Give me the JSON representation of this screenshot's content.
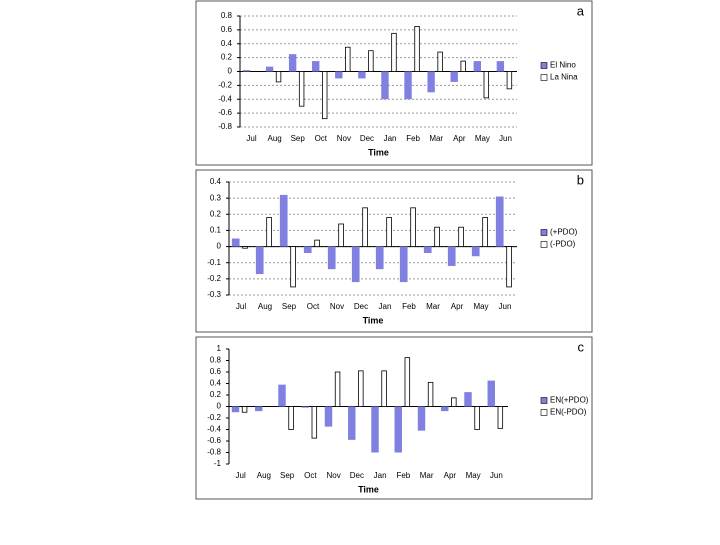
{
  "chart_data": [
    {
      "type": "bar",
      "label": "a",
      "x_label": "Time",
      "categories": [
        "Jul",
        "Aug",
        "Sep",
        "Oct",
        "Nov",
        "Dec",
        "Jan",
        "Feb",
        "Mar",
        "Apr",
        "May",
        "Jun"
      ],
      "series": [
        {
          "name": "El Nino",
          "color": "#8080e0",
          "values": [
            0.02,
            0.07,
            0.25,
            0.15,
            -0.1,
            -0.1,
            -0.4,
            -0.4,
            -0.3,
            -0.15,
            0.15,
            0.15
          ]
        },
        {
          "name": "La Nina",
          "color": "#ffffff",
          "values": [
            0,
            -0.15,
            -0.5,
            -0.68,
            0.35,
            0.3,
            0.55,
            0.65,
            0.28,
            0.15,
            -0.38,
            -0.25
          ]
        }
      ],
      "ylim": [
        -0.8,
        0.8
      ],
      "yticks": [
        0.8,
        0.6,
        0.4,
        0.2,
        0,
        -0.2,
        -0.4,
        -0.6,
        -0.8
      ],
      "grid": true
    },
    {
      "type": "bar",
      "label": "b",
      "x_label": "Time",
      "categories": [
        "Jul",
        "Aug",
        "Sep",
        "Oct",
        "Nov",
        "Dec",
        "Jan",
        "Feb",
        "Mar",
        "Apr",
        "May",
        "Jun"
      ],
      "series": [
        {
          "name": "(+PDO)",
          "color": "#8080e0",
          "values": [
            0.05,
            -0.17,
            0.32,
            -0.04,
            -0.14,
            -0.22,
            -0.14,
            -0.22,
            -0.04,
            -0.12,
            -0.06,
            0.31
          ]
        },
        {
          "name": "(-PDO)",
          "color": "#ffffff",
          "values": [
            -0.01,
            0.18,
            -0.25,
            0.04,
            0.14,
            0.24,
            0.18,
            0.24,
            0.12,
            0.12,
            0.18,
            -0.25
          ]
        }
      ],
      "ylim": [
        -0.3,
        0.4
      ],
      "yticks": [
        0.4,
        0.3,
        0.2,
        0.1,
        0,
        -0.1,
        -0.2,
        -0.3
      ],
      "grid": true
    },
    {
      "type": "bar",
      "label": "c",
      "x_label": "Time",
      "categories": [
        "Jul",
        "Aug",
        "Sep",
        "Oct",
        "Nov",
        "Dec",
        "Jan",
        "Feb",
        "Mar",
        "Apr",
        "May",
        "Jun"
      ],
      "series": [
        {
          "name": "EN(+PDO)",
          "color": "#8080e0",
          "values": [
            -0.1,
            -0.08,
            0.38,
            -0.02,
            -0.35,
            -0.58,
            -0.8,
            -0.8,
            -0.42,
            -0.08,
            0.25,
            0.45
          ]
        },
        {
          "name": "EN(-PDO)",
          "color": "#ffffff",
          "values": [
            -0.1,
            0,
            -0.4,
            -0.55,
            0.6,
            0.62,
            0.62,
            0.85,
            0.42,
            0.15,
            -0.4,
            -0.38
          ]
        }
      ],
      "ylim": [
        -1,
        1
      ],
      "yticks": [
        1,
        0.8,
        0.6,
        0.4,
        0.2,
        0,
        -0.2,
        -0.4,
        -0.6,
        -0.8,
        -1
      ],
      "grid": false
    }
  ]
}
